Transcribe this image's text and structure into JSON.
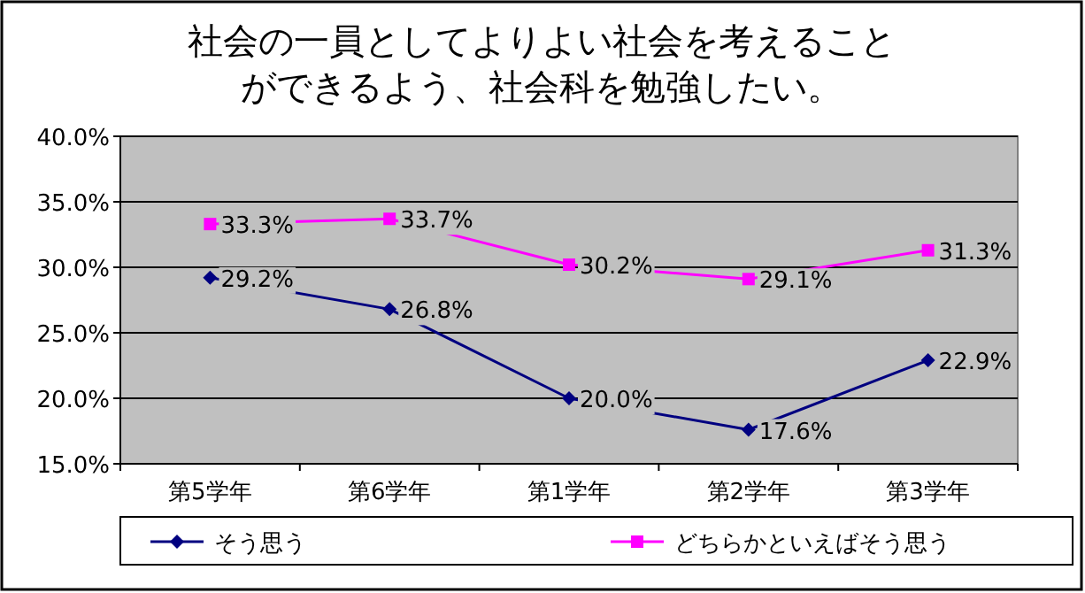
{
  "chart_data": {
    "type": "line",
    "title": "社会の一員としてよりよい社会を考えることができるよう、社会科を勉強したい。",
    "categories": [
      "第5学年",
      "第6学年",
      "第1学年",
      "第2学年",
      "第3学年"
    ],
    "series": [
      {
        "name": "そう思う",
        "color": "#000080",
        "marker": "diamond",
        "values": [
          29.2,
          26.8,
          20.0,
          17.6,
          22.9
        ],
        "value_labels": [
          "29.2%",
          "26.8%",
          "20.0%",
          "17.6%",
          "22.9%"
        ]
      },
      {
        "name": "どちらかといえばそう思う",
        "color": "#ff00ff",
        "marker": "square",
        "values": [
          33.3,
          33.7,
          30.2,
          29.1,
          31.3
        ],
        "value_labels": [
          "33.3%",
          "33.7%",
          "30.2%",
          "29.1%",
          "31.3%"
        ]
      }
    ],
    "ylim": [
      15,
      40
    ],
    "yticks": [
      {
        "value": 15,
        "label": "15.0%"
      },
      {
        "value": 20,
        "label": "20.0%"
      },
      {
        "value": 25,
        "label": "25.0%"
      },
      {
        "value": 30,
        "label": "30.0%"
      },
      {
        "value": 35,
        "label": "35.0%"
      },
      {
        "value": 40,
        "label": "40.0%"
      }
    ],
    "grid": "y",
    "legend": "bottom"
  }
}
